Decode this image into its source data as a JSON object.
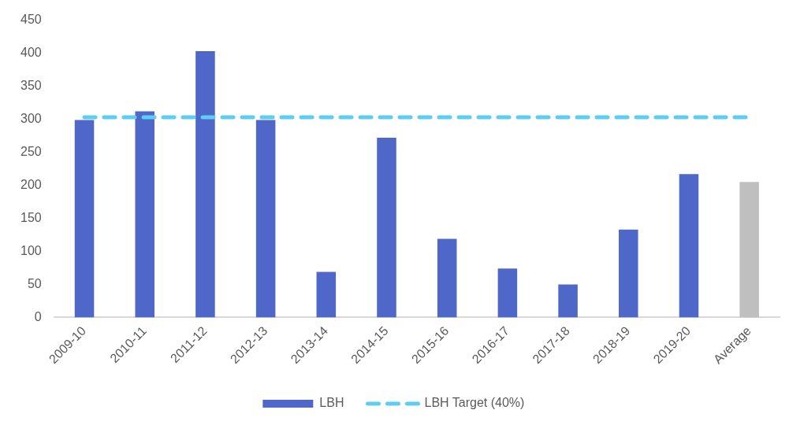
{
  "chart_data": {
    "type": "bar",
    "categories": [
      "2009-10",
      "2010-11",
      "2011-12",
      "2012-13",
      "2013-14",
      "2014-15",
      "2015-16",
      "2016-17",
      "2017-18",
      "2018-19",
      "2019-20",
      "Average"
    ],
    "series": [
      {
        "name": "LBH",
        "colors": [
          "#4f67c8",
          "#4f67c8",
          "#4f67c8",
          "#4f67c8",
          "#4f67c8",
          "#4f67c8",
          "#4f67c8",
          "#4f67c8",
          "#4f67c8",
          "#4f67c8",
          "#4f67c8",
          "#bfbfbf"
        ],
        "values": [
          299,
          312,
          403,
          299,
          69,
          272,
          119,
          74,
          50,
          133,
          217,
          205
        ]
      },
      {
        "name": "LBH Target (40%)",
        "type": "line",
        "color": "#5ecdf2",
        "line_style": "dashed",
        "marker": "none",
        "values": [
          303,
          303,
          303,
          303,
          303,
          303,
          303,
          303,
          303,
          303,
          303,
          303
        ]
      }
    ],
    "ylim": [
      0,
      450
    ],
    "yticks": [
      0,
      50,
      100,
      150,
      200,
      250,
      300,
      350,
      400,
      450
    ],
    "grid": false,
    "legend": "bottom"
  }
}
